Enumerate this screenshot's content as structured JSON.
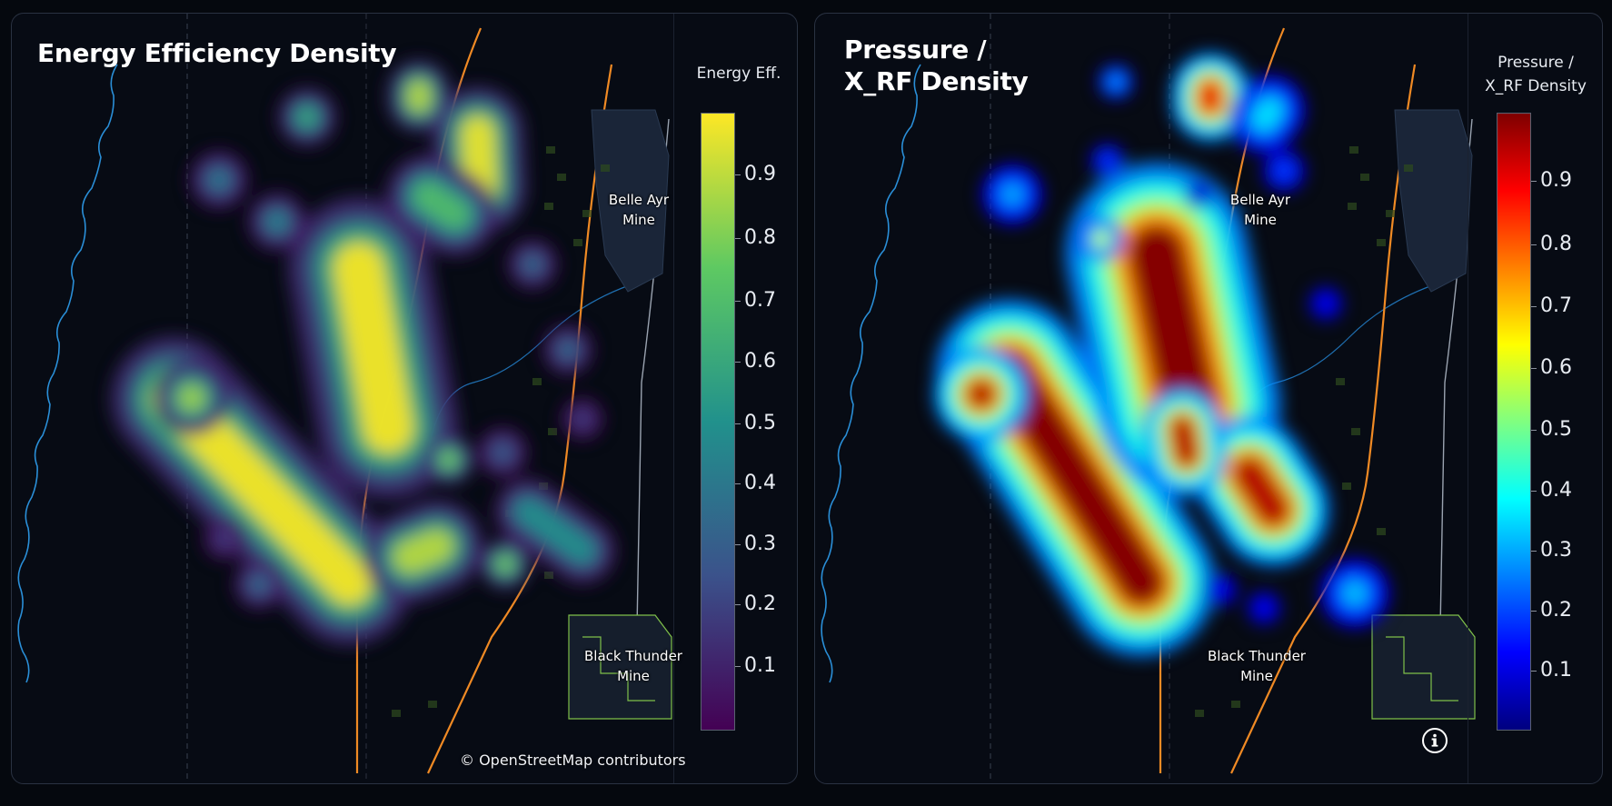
{
  "panels": [
    {
      "title_lines": [
        "Energy Efficiency Density"
      ],
      "legend": {
        "title_lines": [
          "Energy Eff."
        ],
        "ticks": [
          "0.9",
          "0.8",
          "0.7",
          "0.6",
          "0.5",
          "0.4",
          "0.3",
          "0.2",
          "0.1"
        ],
        "colormap": "viridis",
        "colors": [
          "#440154",
          "#3b528b",
          "#21918c",
          "#5ec962",
          "#fde725"
        ]
      },
      "hotspots": [
        {
          "a": [
            190,
            438
          ],
          "b": [
            383,
            640
          ],
          "w": 30,
          "v": 1.0
        },
        {
          "a": [
            394,
            294
          ],
          "b": [
            426,
            470
          ],
          "w": 34,
          "v": 1.0
        },
        {
          "a": [
            525,
            145
          ],
          "b": [
            528,
            205
          ],
          "w": 22,
          "v": 0.98
        },
        {
          "a": [
            460,
            100
          ],
          "b": [
            460,
            110
          ],
          "w": 15,
          "v": 0.9
        },
        {
          "a": [
            210,
            437
          ],
          "b": [
            210,
            437
          ],
          "w": 18,
          "v": 0.85
        },
        {
          "a": [
            450,
            612
          ],
          "b": [
            480,
            600
          ],
          "w": 22,
          "v": 0.9
        },
        {
          "a": [
            555,
            620
          ],
          "b": [
            555,
            620
          ],
          "w": 12,
          "v": 0.8
        },
        {
          "a": [
            240,
            197
          ],
          "b": [
            240,
            197
          ],
          "w": 14,
          "v": 0.4
        },
        {
          "a": [
            337,
            128
          ],
          "b": [
            337,
            128
          ],
          "w": 14,
          "v": 0.6
        },
        {
          "a": [
            304,
            243
          ],
          "b": [
            304,
            243
          ],
          "w": 14,
          "v": 0.45
        },
        {
          "a": [
            585,
            290
          ],
          "b": [
            585,
            290
          ],
          "w": 12,
          "v": 0.35
        },
        {
          "a": [
            624,
            384
          ],
          "b": [
            624,
            384
          ],
          "w": 12,
          "v": 0.35
        },
        {
          "a": [
            493,
            505
          ],
          "b": [
            493,
            505
          ],
          "w": 12,
          "v": 0.8
        },
        {
          "a": [
            552,
            497
          ],
          "b": [
            552,
            497
          ],
          "w": 12,
          "v": 0.3
        },
        {
          "a": [
            580,
            562
          ],
          "b": [
            640,
            605
          ],
          "w": 16,
          "v": 0.5
        },
        {
          "a": [
            246,
            592
          ],
          "b": [
            246,
            592
          ],
          "w": 10,
          "v": 0.2
        },
        {
          "a": [
            284,
            642
          ],
          "b": [
            284,
            642
          ],
          "w": 12,
          "v": 0.35
        },
        {
          "a": [
            640,
            460
          ],
          "b": [
            640,
            460
          ],
          "w": 10,
          "v": 0.2
        },
        {
          "a": [
            470,
            215
          ],
          "b": [
            500,
            235
          ],
          "w": 20,
          "v": 0.7
        }
      ],
      "mines": [
        {
          "lines": [
            "Belle Ayr",
            "Mine"
          ]
        },
        {
          "lines": [
            "Black Thunder",
            "Mine"
          ]
        }
      ],
      "attribution": "© OpenStreetMap contributors"
    },
    {
      "title_lines": [
        "Pressure /",
        "X_RF Density"
      ],
      "legend": {
        "title_lines": [
          "Pressure /",
          "X_RF Density"
        ],
        "ticks": [
          "0.9",
          "0.8",
          "0.7",
          "0.6",
          "0.5",
          "0.4",
          "0.3",
          "0.2",
          "0.1"
        ],
        "colormap": "jet",
        "colors": [
          "#00007f",
          "#0000ff",
          "#0080ff",
          "#00ffff",
          "#80ff80",
          "#ffff00",
          "#ff8000",
          "#ff0000",
          "#7f0000"
        ]
      },
      "hotspots": [
        {
          "a": [
            1110,
            410
          ],
          "b": [
            1255,
            640
          ],
          "w": 34,
          "v": 1.0
        },
        {
          "a": [
            1272,
            278
          ],
          "b": [
            1308,
            445
          ],
          "w": 42,
          "v": 1.0
        },
        {
          "a": [
            1079,
            433
          ],
          "b": [
            1079,
            433
          ],
          "w": 22,
          "v": 0.95
        },
        {
          "a": [
            1331,
            100
          ],
          "b": [
            1331,
            112
          ],
          "w": 18,
          "v": 0.9
        },
        {
          "a": [
            1374,
            520
          ],
          "b": [
            1400,
            560
          ],
          "w": 26,
          "v": 0.95
        },
        {
          "a": [
            1300,
            470
          ],
          "b": [
            1305,
            500
          ],
          "w": 18,
          "v": 0.95
        },
        {
          "a": [
            1211,
            262
          ],
          "b": [
            1211,
            262
          ],
          "w": 10,
          "v": 0.6
        },
        {
          "a": [
            1397,
            120
          ],
          "b": [
            1390,
            130
          ],
          "w": 16,
          "v": 0.35
        },
        {
          "a": [
            1113,
            213
          ],
          "b": [
            1113,
            213
          ],
          "w": 14,
          "v": 0.3
        },
        {
          "a": [
            1227,
            89
          ],
          "b": [
            1227,
            89
          ],
          "w": 8,
          "v": 0.3
        },
        {
          "a": [
            1218,
            176
          ],
          "b": [
            1218,
            176
          ],
          "w": 8,
          "v": 0.2
        },
        {
          "a": [
            1412,
            187
          ],
          "b": [
            1412,
            187
          ],
          "w": 10,
          "v": 0.2
        },
        {
          "a": [
            1458,
            333
          ],
          "b": [
            1458,
            333
          ],
          "w": 8,
          "v": 0.15
        },
        {
          "a": [
            1490,
            652
          ],
          "b": [
            1490,
            652
          ],
          "w": 16,
          "v": 0.32
        },
        {
          "a": [
            1342,
            648
          ],
          "b": [
            1342,
            648
          ],
          "w": 8,
          "v": 0.15
        },
        {
          "a": [
            1390,
            668
          ],
          "b": [
            1390,
            668
          ],
          "w": 8,
          "v": 0.15
        },
        {
          "a": [
            1318,
            213
          ],
          "b": [
            1318,
            213
          ],
          "w": 6,
          "v": 0.15
        }
      ],
      "mines": [
        {
          "lines": [
            "Belle Ayr",
            "Mine"
          ]
        },
        {
          "lines": [
            "Black Thunder",
            "Mine"
          ]
        }
      ],
      "info_icon": "info-icon"
    }
  ]
}
